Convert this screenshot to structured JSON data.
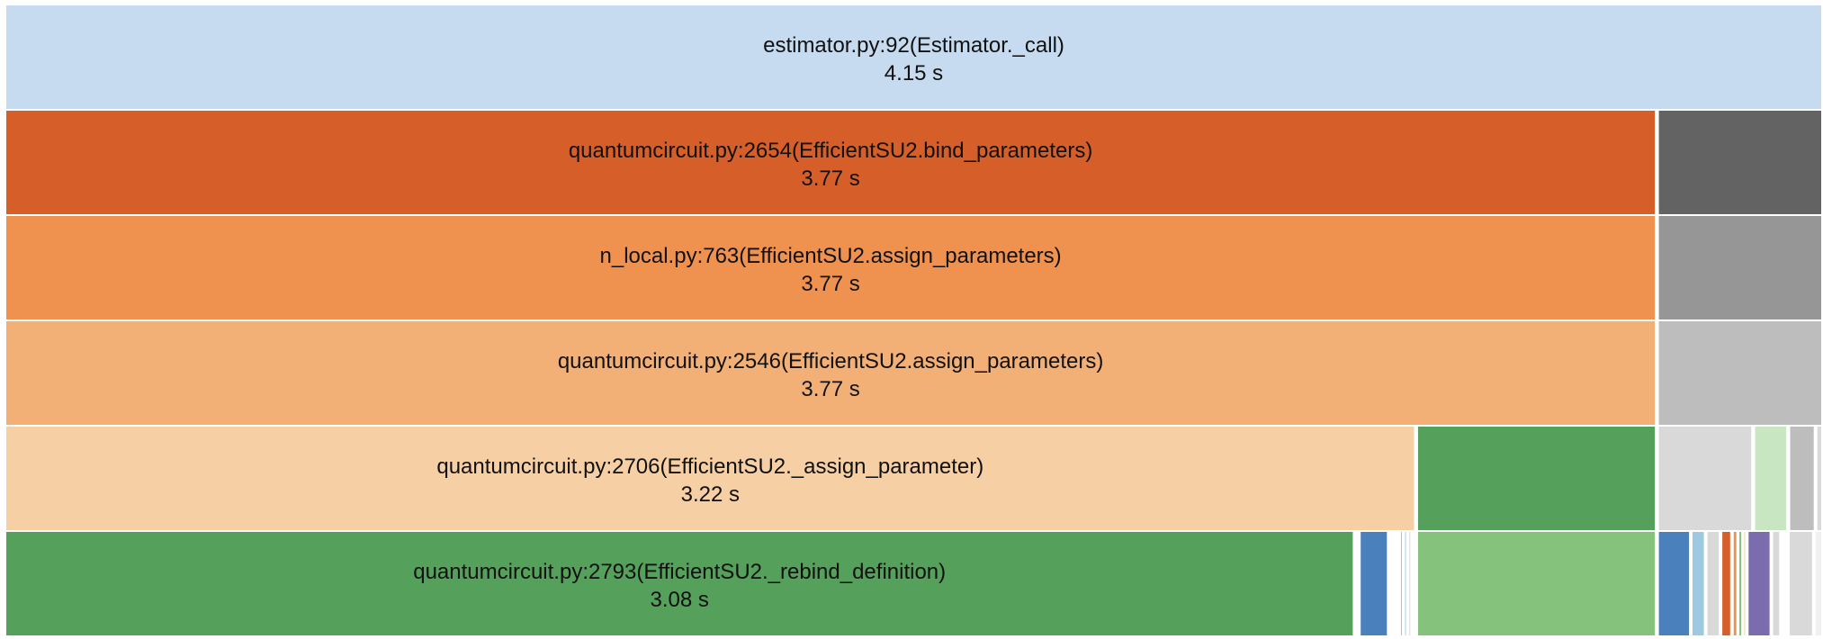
{
  "chart_data": {
    "type": "flame-icicle",
    "unit": "s",
    "x_range": [
      0,
      4.15
    ],
    "levels": [
      [
        {
          "label": "estimator.py:92(Estimator._call)",
          "value": "4.15 s",
          "start": 0.0,
          "width": 4.15,
          "color": "#c6dbef"
        }
      ],
      [
        {
          "label": "quantumcircuit.py:2654(EfficientSU2.bind_parameters)",
          "value": "3.77 s",
          "start": 0.0,
          "width": 3.77,
          "color": "#d55e29"
        },
        {
          "start": 3.775,
          "width": 0.375,
          "color": "#636363"
        }
      ],
      [
        {
          "label": "n_local.py:763(EfficientSU2.assign_parameters)",
          "value": "3.77 s",
          "start": 0.0,
          "width": 3.77,
          "color": "#ef9250"
        },
        {
          "start": 3.775,
          "width": 0.375,
          "color": "#969696"
        }
      ],
      [
        {
          "label": "quantumcircuit.py:2546(EfficientSU2.assign_parameters)",
          "value": "3.77 s",
          "start": 0.0,
          "width": 3.77,
          "color": "#f2b076"
        },
        {
          "start": 3.775,
          "width": 0.375,
          "color": "#bdbdbd"
        }
      ],
      [
        {
          "label": "quantumcircuit.py:2706(EfficientSU2._assign_parameter)",
          "value": "3.22 s",
          "start": 0.0,
          "width": 3.22,
          "color": "#f6cfa5"
        },
        {
          "start": 3.225,
          "width": 0.545,
          "color": "#55a05a"
        },
        {
          "start": 3.775,
          "width": 0.215,
          "color": "#d9d9d9"
        },
        {
          "start": 3.995,
          "width": 0.075,
          "color": "#c7e6c1"
        },
        {
          "start": 4.075,
          "width": 0.058,
          "color": "#bdbdbd"
        },
        {
          "start": 4.137,
          "width": 0.013,
          "color": "#d9d9d9"
        }
      ],
      [
        {
          "label": "quantumcircuit.py:2793(EfficientSU2._rebind_definition)",
          "value": "3.08 s",
          "start": 0.0,
          "width": 3.08,
          "color": "#55a05a"
        },
        {
          "start": 3.094,
          "width": 0.064,
          "color": "#4a80bb"
        },
        {
          "start": 3.162,
          "width": 0.022,
          "color": "#ffffff"
        },
        {
          "start": 3.186,
          "width": 0.006,
          "color": "#9ecae1"
        },
        {
          "start": 3.195,
          "width": 0.007,
          "color": "#c6dbef"
        },
        {
          "start": 3.205,
          "width": 0.006,
          "color": "#d9d9d9"
        },
        {
          "start": 3.225,
          "width": 0.545,
          "color": "#85c27b"
        },
        {
          "start": 3.775,
          "width": 0.073,
          "color": "#4a80bb"
        },
        {
          "start": 3.852,
          "width": 0.03,
          "color": "#9ecae1"
        },
        {
          "start": 3.886,
          "width": 0.03,
          "color": "#d9d9d9"
        },
        {
          "start": 3.92,
          "width": 0.022,
          "color": "#d55e29"
        },
        {
          "start": 3.946,
          "width": 0.01,
          "color": "#ef9250"
        },
        {
          "start": 3.959,
          "width": 0.008,
          "color": "#85c27b"
        },
        {
          "start": 3.97,
          "width": 0.005,
          "color": "#f6cfa5"
        },
        {
          "start": 3.98,
          "width": 0.052,
          "color": "#7b6cae"
        },
        {
          "start": 4.036,
          "width": 0.018,
          "color": "#d9d9d9"
        },
        {
          "start": 4.074,
          "width": 0.055,
          "color": "#d9d9d9"
        },
        {
          "start": 4.133,
          "width": 0.017,
          "color": "#f0f0f0"
        }
      ]
    ]
  }
}
